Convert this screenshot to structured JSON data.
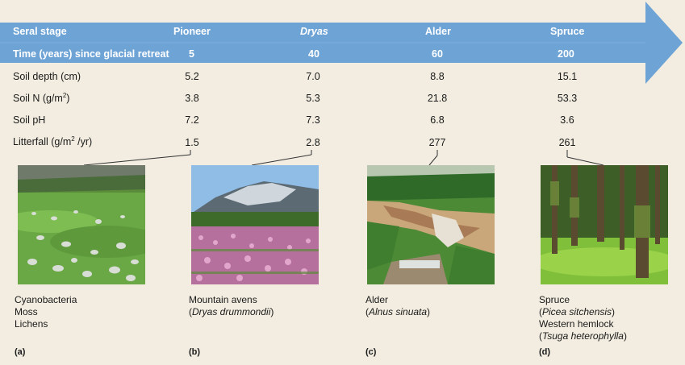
{
  "header": {
    "row1_label": "Seral stage",
    "row2_label": "Time (years) since glacial retreat",
    "stages": [
      "Pioneer",
      "Dryas",
      "Alder",
      "Spruce"
    ],
    "times": [
      "5",
      "40",
      "60",
      "200"
    ]
  },
  "rows": {
    "depth": {
      "label": "Soil depth (cm)",
      "values": [
        "5.2",
        "7.0",
        "8.8",
        "15.1"
      ]
    },
    "n": {
      "label": "Soil N (g/m",
      "unit_sup": "2",
      "label_tail": ")",
      "values": [
        "3.8",
        "5.3",
        "21.8",
        "53.3"
      ]
    },
    "ph": {
      "label": "Soil pH",
      "values": [
        "7.2",
        "7.3",
        "6.8",
        "3.6"
      ]
    },
    "litter": {
      "label": "Litterfall (g/m",
      "unit_sup": "2",
      "label_tail": " /yr)",
      "values": [
        "1.5",
        "2.8",
        "277",
        "261"
      ]
    }
  },
  "panels": [
    {
      "lines": [
        "Cyanobacteria",
        "Moss",
        "Lichens"
      ],
      "letter": "(a)"
    },
    {
      "line1": "Mountain avens",
      "open": "(",
      "species": "Dryas drummondii",
      "close": ")",
      "letter": "(b)"
    },
    {
      "line1": "Alder",
      "open": "(",
      "species": "Alnus sinuata",
      "close": ")",
      "letter": "(c)"
    },
    {
      "line1": "Spruce",
      "open": "(",
      "species": "Picea sitchensis",
      "close": ")",
      "line3": "Western hemlock",
      "open2": "(",
      "species2": "Tsuga heterophylla",
      "close2": ")",
      "letter": "(d)"
    }
  ],
  "colors": {
    "background": "#f2ede0",
    "arrow": "#6ea3d6",
    "header_text": "#ffffff",
    "leader": "#333333"
  }
}
